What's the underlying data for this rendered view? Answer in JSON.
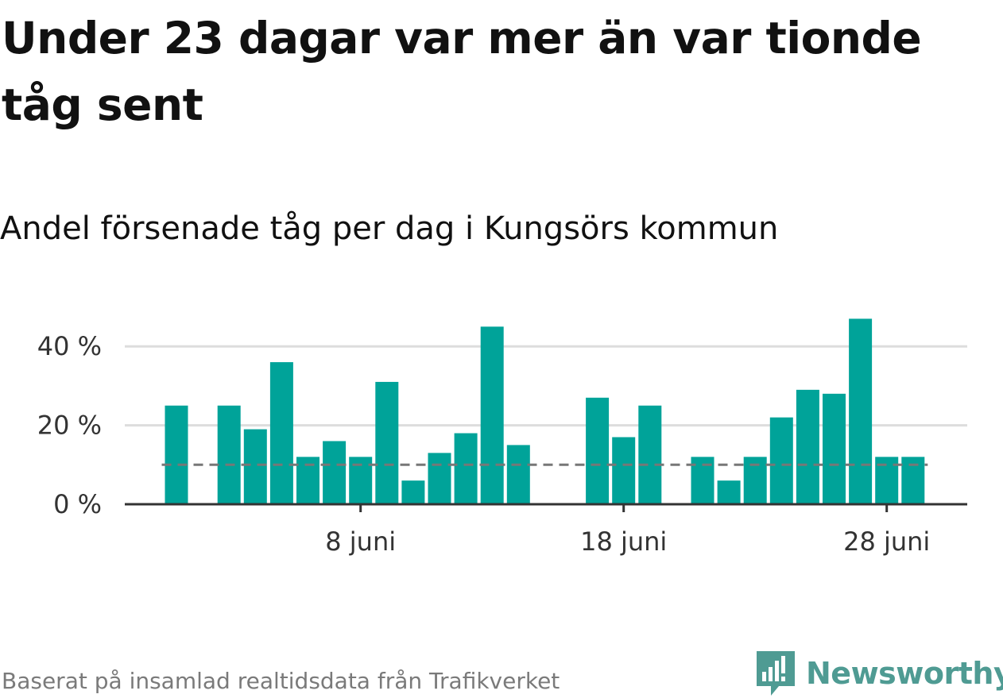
{
  "title": "Under 23 dagar var mer än var tionde tåg sent",
  "subtitle": "Andel försenade tåg per dag i Kungsörs kommun",
  "source": "Baserat på insamlad realtidsdata från Trafikverket",
  "brand": {
    "name": "Newsworthy",
    "icon": "newsworthy-logo-icon"
  },
  "colors": {
    "bar": "#00a399",
    "reference_line": "#777777",
    "grid": "#dddddd",
    "axis": "#333333",
    "brand": "#4f9b93"
  },
  "chart_data": {
    "type": "bar",
    "x": [
      1,
      2,
      3,
      4,
      5,
      6,
      7,
      8,
      9,
      10,
      11,
      12,
      13,
      14,
      15,
      16,
      17,
      18,
      19,
      20,
      21,
      22,
      23,
      24,
      25,
      26,
      27,
      28,
      29
    ],
    "values": [
      25,
      null,
      25,
      19,
      36,
      12,
      16,
      12,
      31,
      6,
      13,
      18,
      45,
      15,
      null,
      null,
      27,
      17,
      25,
      null,
      12,
      6,
      12,
      22,
      29,
      28,
      47,
      12,
      12
    ],
    "x_ticks": [
      {
        "x": 8,
        "label": "8 juni"
      },
      {
        "x": 18,
        "label": "18 juni"
      },
      {
        "x": 28,
        "label": "28 juni"
      }
    ],
    "y_ticks": [
      {
        "value": 0,
        "label": "0 %"
      },
      {
        "value": 20,
        "label": "20 %"
      },
      {
        "value": 40,
        "label": "40 %"
      }
    ],
    "ylim": [
      0,
      50
    ],
    "reference_line": 10,
    "grid": true,
    "unit": "%"
  }
}
